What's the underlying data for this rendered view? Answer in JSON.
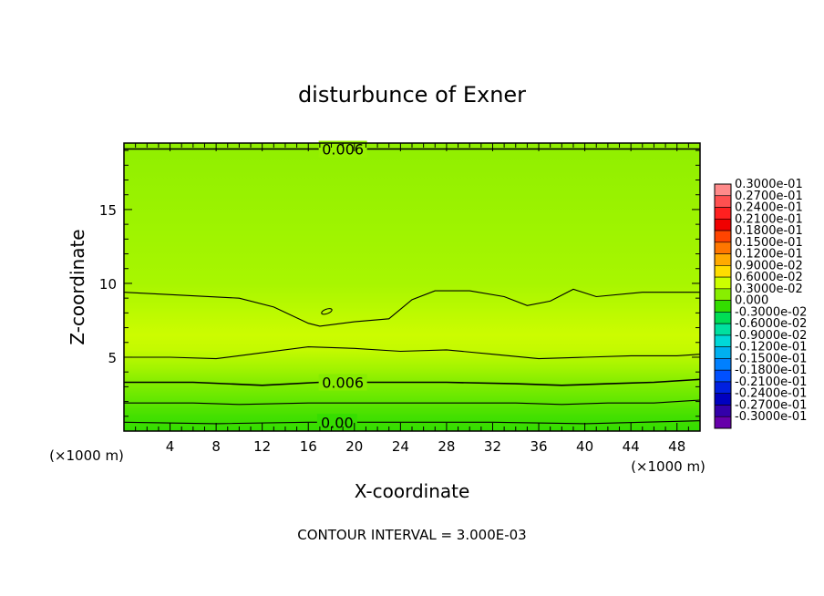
{
  "chart_data": {
    "type": "heatmap",
    "title": "disturbunce of Exner",
    "xlabel": "X-coordinate",
    "ylabel": "Z-coordinate",
    "x_unit_left": "(×1000 m)",
    "x_unit_right": "(×1000 m)",
    "xlim": [
      0,
      50
    ],
    "ylim": [
      0,
      19.5
    ],
    "x_ticks": [
      "4",
      "8",
      "12",
      "16",
      "20",
      "24",
      "28",
      "32",
      "36",
      "40",
      "44",
      "48"
    ],
    "y_ticks": [
      "5",
      "10",
      "15"
    ],
    "footer": "CONTOUR INTERVAL = 3.000E-03",
    "contour_labels": [
      "0.006",
      "0.006",
      "0.00"
    ],
    "colorbar": {
      "labels": [
        "0.3000e-01",
        "0.2700e-01",
        "0.2400e-01",
        "0.2100e-01",
        "0.1800e-01",
        "0.1500e-01",
        "0.1200e-01",
        "0.9000e-02",
        "0.6000e-02",
        "0.3000e-02",
        "0.000",
        "-0.3000e-02",
        "-0.6000e-02",
        "-0.9000e-02",
        "-0.1200e-01",
        "-0.1500e-01",
        "-0.1800e-01",
        "-0.2100e-01",
        "-0.2400e-01",
        "-0.2700e-01",
        "-0.3000e-01"
      ],
      "colors": [
        "#ff8a8a",
        "#ff5050",
        "#ff2020",
        "#f00000",
        "#ff4400",
        "#ff7700",
        "#ffaa00",
        "#ffdd00",
        "#ccff00",
        "#88ee00",
        "#33dd00",
        "#00dd55",
        "#00e0a0",
        "#00d8d8",
        "#00b0f0",
        "#0080ff",
        "#0050ff",
        "#0020e0",
        "#0000c0",
        "#3300aa",
        "#6600aa"
      ]
    },
    "contours": [
      {
        "level": "0.006",
        "points": [
          [
            0,
            19.1
          ],
          [
            50,
            19.1
          ]
        ]
      },
      {
        "level": "0.009",
        "points": [
          [
            0,
            9.4
          ],
          [
            5,
            9.2
          ],
          [
            10,
            9.0
          ],
          [
            13,
            8.4
          ],
          [
            16,
            7.3
          ],
          [
            17,
            7.1
          ],
          [
            20,
            7.4
          ],
          [
            23,
            7.6
          ],
          [
            25,
            8.9
          ],
          [
            27,
            9.5
          ],
          [
            30,
            9.5
          ],
          [
            33,
            9.1
          ],
          [
            35,
            8.5
          ],
          [
            37,
            8.8
          ],
          [
            39,
            9.6
          ],
          [
            41,
            9.1
          ],
          [
            45,
            9.4
          ],
          [
            50,
            9.4
          ]
        ]
      },
      {
        "level": "0.009",
        "points": [
          [
            0,
            5.0
          ],
          [
            4,
            5.0
          ],
          [
            8,
            4.9
          ],
          [
            12,
            5.3
          ],
          [
            16,
            5.7
          ],
          [
            20,
            5.6
          ],
          [
            24,
            5.4
          ],
          [
            28,
            5.5
          ],
          [
            32,
            5.2
          ],
          [
            36,
            4.9
          ],
          [
            40,
            5.0
          ],
          [
            44,
            5.1
          ],
          [
            48,
            5.1
          ],
          [
            50,
            5.2
          ]
        ]
      },
      {
        "level": "0.006",
        "points": [
          [
            0,
            3.3
          ],
          [
            6,
            3.3
          ],
          [
            12,
            3.1
          ],
          [
            17,
            3.3
          ],
          [
            22,
            3.3
          ],
          [
            28,
            3.3
          ],
          [
            34,
            3.2
          ],
          [
            38,
            3.1
          ],
          [
            42,
            3.2
          ],
          [
            46,
            3.3
          ],
          [
            50,
            3.5
          ]
        ]
      },
      {
        "level": "0.003",
        "points": [
          [
            0,
            1.9
          ],
          [
            6,
            1.9
          ],
          [
            10,
            1.8
          ],
          [
            16,
            1.9
          ],
          [
            22,
            1.9
          ],
          [
            28,
            1.9
          ],
          [
            34,
            1.9
          ],
          [
            38,
            1.8
          ],
          [
            42,
            1.9
          ],
          [
            46,
            1.9
          ],
          [
            50,
            2.1
          ]
        ]
      },
      {
        "level": "0.00",
        "points": [
          [
            0,
            0.6
          ],
          [
            8,
            0.5
          ],
          [
            16,
            0.6
          ],
          [
            24,
            0.6
          ],
          [
            32,
            0.6
          ],
          [
            40,
            0.5
          ],
          [
            50,
            0.7
          ]
        ]
      }
    ],
    "bands": [
      {
        "z": 0.0,
        "color": "#33dd00"
      },
      {
        "z": 1.0,
        "color": "#44e000"
      },
      {
        "z": 2.2,
        "color": "#66e800"
      },
      {
        "z": 3.4,
        "color": "#88ee00"
      },
      {
        "z": 4.3,
        "color": "#a4f400"
      },
      {
        "z": 5.5,
        "color": "#c4fa00"
      },
      {
        "z": 6.5,
        "color": "#ccfc00"
      },
      {
        "z": 8.0,
        "color": "#bcfa00"
      },
      {
        "z": 10.0,
        "color": "#a8f600"
      },
      {
        "z": 13.0,
        "color": "#a0f400"
      },
      {
        "z": 16.0,
        "color": "#98f200"
      },
      {
        "z": 19.5,
        "color": "#90ee00"
      }
    ]
  }
}
